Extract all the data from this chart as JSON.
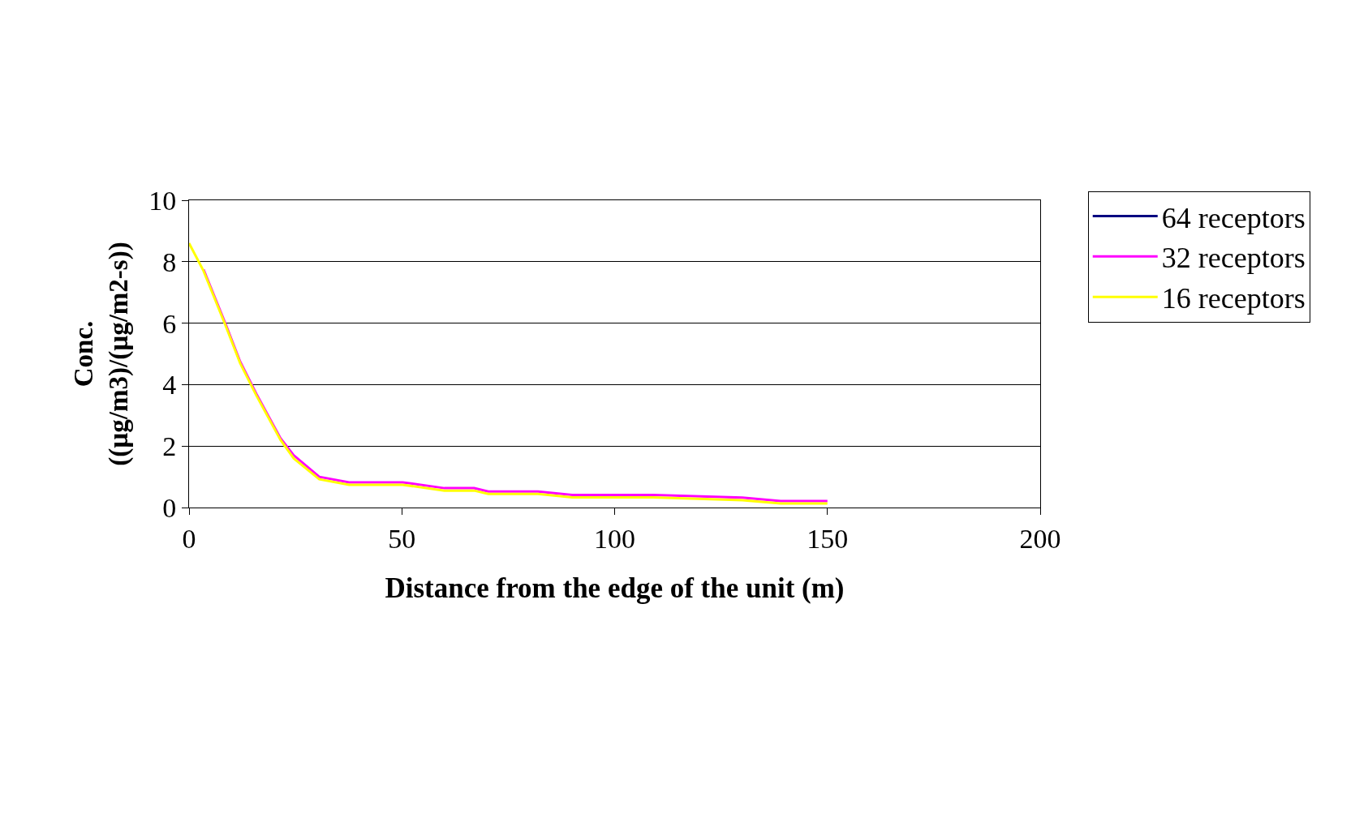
{
  "chart_data": {
    "type": "line",
    "xlabel": "Distance from the edge of the unit (m)",
    "ylabel": "Conc.\n((µg/m3)/(µg/m2-s))",
    "x": [
      0,
      3.4,
      8.5,
      12,
      15.8,
      21.5,
      24.6,
      30.6,
      37.6,
      50.2,
      60,
      67,
      70.3,
      82,
      90,
      109,
      130,
      139,
      150
    ],
    "series": [
      {
        "name": "64 receptors",
        "color": "#000080",
        "values": [
          null,
          null,
          null,
          null,
          null,
          null,
          null,
          null,
          null,
          null,
          null,
          null,
          null,
          null,
          null,
          null,
          null,
          null,
          null
        ]
      },
      {
        "name": "32 receptors",
        "color": "#ff00ff",
        "values": [
          null,
          7.75,
          6.0,
          4.75,
          3.7,
          2.25,
          1.7,
          1.0,
          0.82,
          0.82,
          0.63,
          0.63,
          0.52,
          0.52,
          0.41,
          0.41,
          0.32,
          0.21,
          0.21
        ]
      },
      {
        "name": "16 receptors",
        "color": "#ffff00",
        "values": [
          8.6,
          7.7,
          5.95,
          4.7,
          3.65,
          2.2,
          1.6,
          0.92,
          0.74,
          0.74,
          0.55,
          0.55,
          0.44,
          0.44,
          0.33,
          0.33,
          0.24,
          0.13,
          0.13
        ]
      }
    ],
    "xlim": [
      0,
      200
    ],
    "xticks": [
      0,
      50,
      100,
      150,
      200
    ],
    "ylim": [
      0,
      10
    ],
    "yticks": [
      0,
      2,
      4,
      6,
      8,
      10
    ],
    "grid": "y",
    "legend": "right",
    "marker": "none",
    "line_style": "solid"
  }
}
